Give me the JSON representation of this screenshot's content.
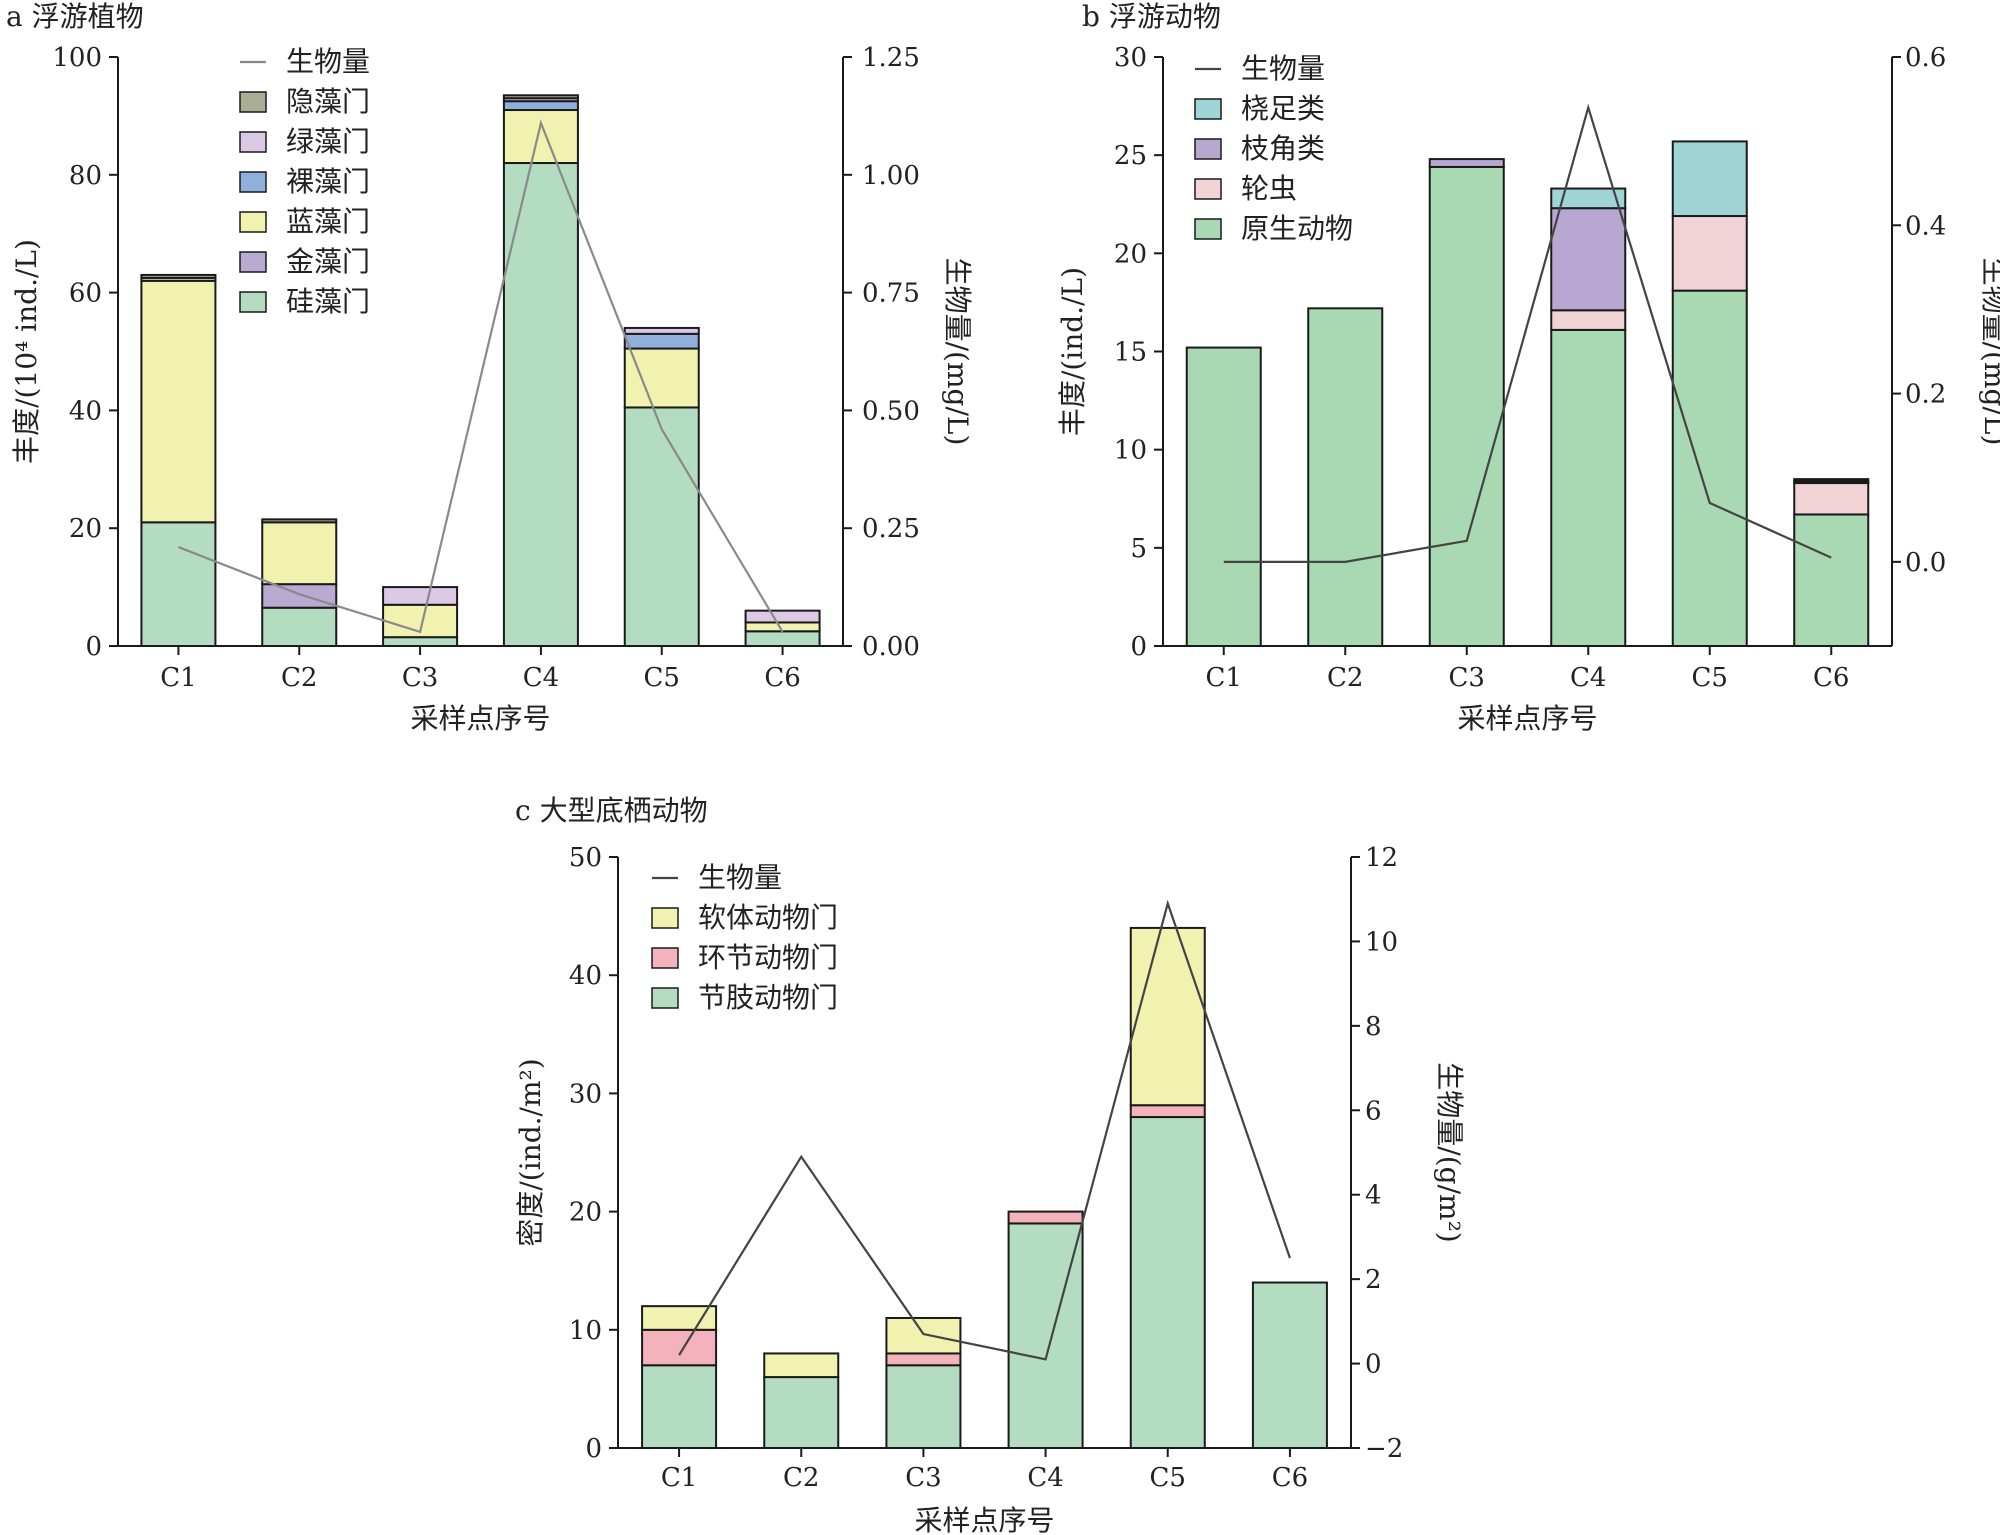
{
  "chart_data": [
    {
      "type": "bar",
      "stacked": true,
      "title": "a 浮游植物",
      "xlabel": "采样点序号",
      "ylabel": "丰度/(10⁴ ind./L)",
      "y2label": "生物量/(mg/L)",
      "categories": [
        "C1",
        "C2",
        "C3",
        "C4",
        "C5",
        "C6"
      ],
      "ylim": [
        0,
        100
      ],
      "yticks": [
        "0",
        "20",
        "40",
        "60",
        "80",
        "100"
      ],
      "y2lim": [
        0,
        1.25
      ],
      "y2ticks": [
        "0.00",
        "0.25",
        "0.50",
        "0.75",
        "1.00",
        "1.25"
      ],
      "legend_position": "top-left",
      "series": [
        {
          "name": "硅藻门",
          "color": "#b3dcc1",
          "values": [
            21,
            6.5,
            1.5,
            82,
            40.5,
            2.5
          ]
        },
        {
          "name": "金藻门",
          "color": "#b9aad2",
          "values": [
            0,
            4,
            0,
            0,
            0,
            0
          ]
        },
        {
          "name": "蓝藻门",
          "color": "#f1f1b0",
          "values": [
            41,
            10.5,
            5.5,
            9,
            10,
            1.5
          ]
        },
        {
          "name": "裸藻门",
          "color": "#8fb0db",
          "values": [
            0,
            0,
            0,
            1.5,
            2.5,
            0
          ]
        },
        {
          "name": "绿藻门",
          "color": "#dcc9e6",
          "values": [
            0.5,
            0,
            3,
            0.5,
            1,
            2
          ]
        },
        {
          "name": "隐藻门",
          "color": "#a9ae94",
          "values": [
            0.5,
            0.5,
            0,
            0.5,
            0,
            0
          ]
        }
      ],
      "line": {
        "name": "生物量",
        "color": "#8a8a8a",
        "values": [
          0.21,
          0.11,
          0.03,
          1.11,
          0.46,
          0.03
        ]
      }
    },
    {
      "type": "bar",
      "stacked": true,
      "title": "b 浮游动物",
      "xlabel": "采样点序号",
      "ylabel": "丰度/(ind./L)",
      "y2label": "生物量/(mg/L)",
      "categories": [
        "C1",
        "C2",
        "C3",
        "C4",
        "C5",
        "C6"
      ],
      "ylim": [
        0,
        30
      ],
      "yticks": [
        "0",
        "5",
        "10",
        "15",
        "20",
        "25",
        "30"
      ],
      "y2lim": [
        -0.1,
        0.6
      ],
      "y2ticks": [
        "0.0",
        "0.2",
        "0.4",
        "0.6"
      ],
      "y2tickvals": [
        0,
        0.2,
        0.4,
        0.6
      ],
      "legend_position": "top-left",
      "series": [
        {
          "name": "原生动物",
          "color": "#a8d9b3",
          "values": [
            15.2,
            17.2,
            24.4,
            16.1,
            18.1,
            6.7
          ]
        },
        {
          "name": "轮虫",
          "color": "#f1d3d6",
          "values": [
            0,
            0,
            0,
            1.0,
            3.8,
            1.6
          ]
        },
        {
          "name": "枝角类",
          "color": "#b7a7d1",
          "values": [
            0,
            0,
            0.4,
            5.2,
            0,
            0.1
          ]
        },
        {
          "name": "桡足类",
          "color": "#a0d5d8",
          "values": [
            0,
            0,
            0,
            1.0,
            3.8,
            0.1
          ]
        }
      ],
      "line": {
        "name": "生物量",
        "color": "#444444",
        "values": [
          0.0,
          0.0,
          0.025,
          0.54,
          0.07,
          0.005
        ]
      }
    },
    {
      "type": "bar",
      "stacked": true,
      "title": "c 大型底栖动物",
      "xlabel": "采样点序号",
      "ylabel": "密度/(ind./m²)",
      "y2label": "生物量/(g/m²)",
      "categories": [
        "C1",
        "C2",
        "C3",
        "C4",
        "C5",
        "C6"
      ],
      "ylim": [
        0,
        50
      ],
      "yticks": [
        "0",
        "10",
        "20",
        "30",
        "40",
        "50"
      ],
      "y2lim": [
        -2,
        12
      ],
      "y2ticks": [
        "−2",
        "0",
        "2",
        "4",
        "6",
        "8",
        "10",
        "12"
      ],
      "y2tickvals": [
        -2,
        0,
        2,
        4,
        6,
        8,
        10,
        12
      ],
      "legend_position": "top-left",
      "series": [
        {
          "name": "节肢动物门",
          "color": "#b3dcc1",
          "values": [
            7,
            6,
            7,
            19,
            28,
            14
          ]
        },
        {
          "name": "环节动物门",
          "color": "#f4b3bc",
          "values": [
            3,
            0,
            1,
            1,
            1,
            0
          ]
        },
        {
          "name": "软体动物门",
          "color": "#f1f1b0",
          "values": [
            2,
            2,
            3,
            0,
            15,
            0
          ]
        }
      ],
      "line": {
        "name": "生物量",
        "color": "#444444",
        "values": [
          0.2,
          4.9,
          0.7,
          0.1,
          10.9,
          2.5
        ]
      }
    }
  ]
}
